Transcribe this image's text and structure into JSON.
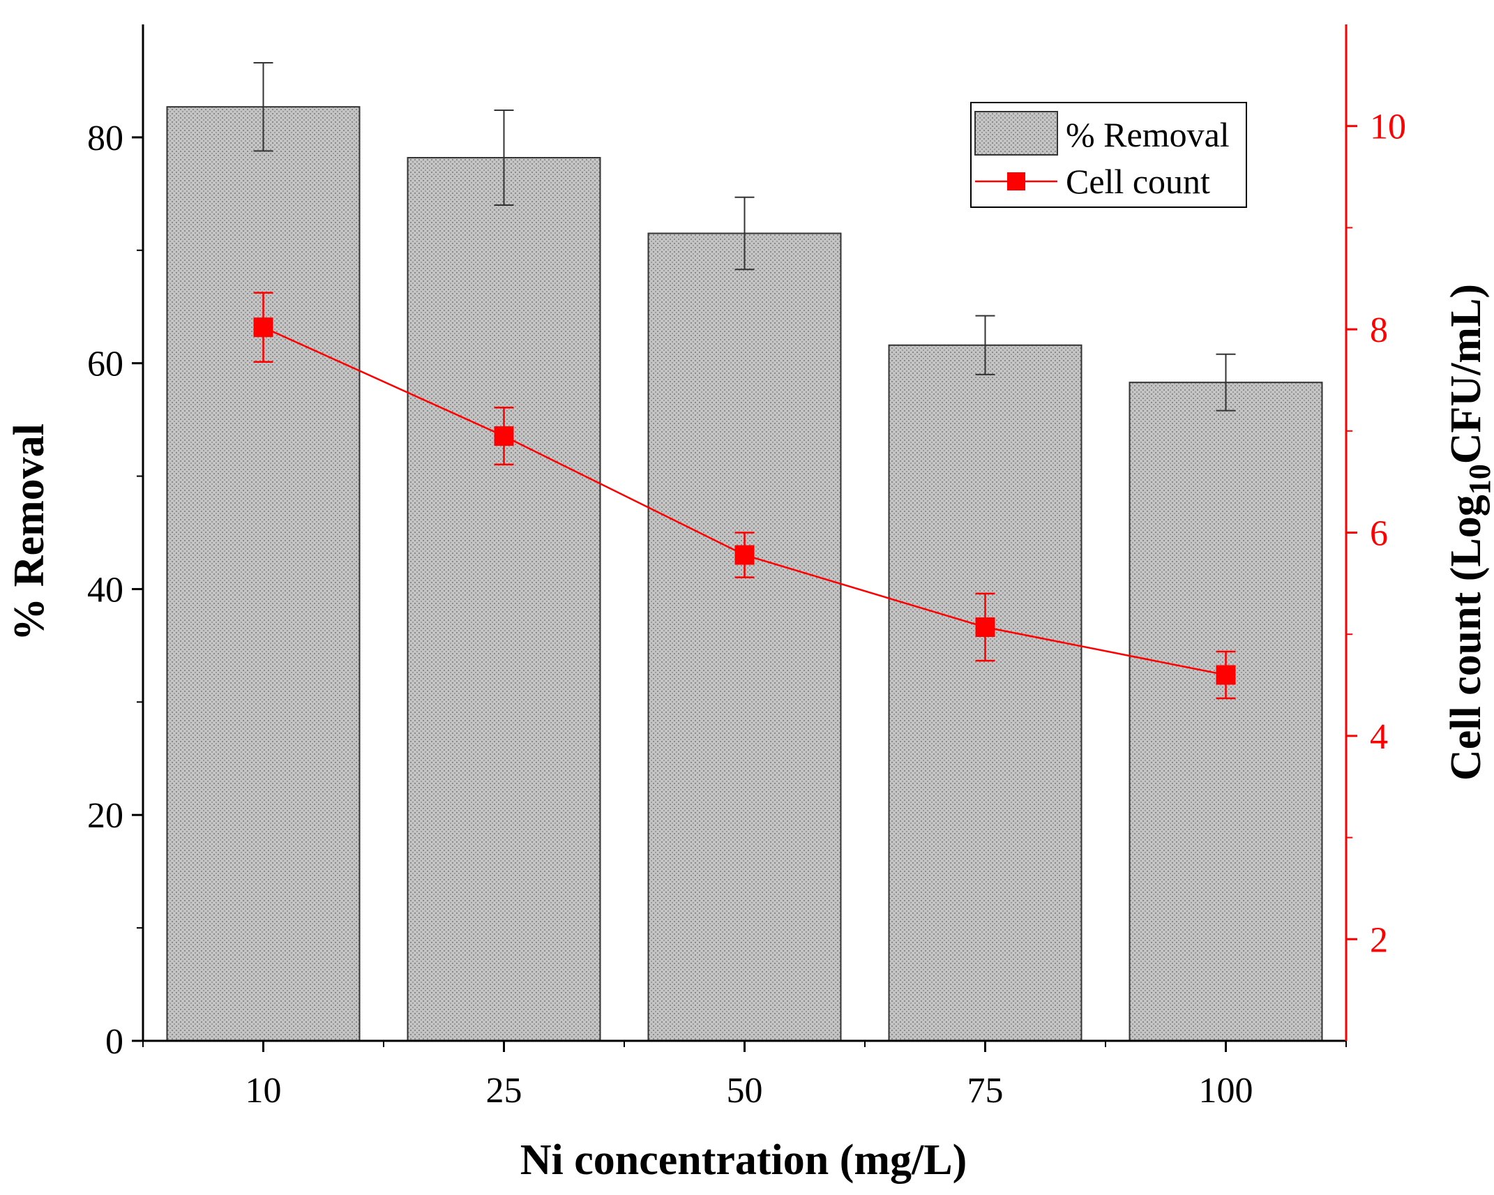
{
  "chart_data": {
    "type": "bar+line",
    "categories": [
      "10",
      "25",
      "50",
      "75",
      "100"
    ],
    "xlabel": "Ni concentration (mg/L)",
    "series": [
      {
        "name": "% Removal",
        "kind": "bar",
        "axis": "left",
        "values": [
          82.7,
          78.2,
          71.5,
          61.6,
          58.3
        ],
        "errors": [
          3.9,
          4.2,
          3.2,
          2.6,
          2.5
        ],
        "color": "#bdbdbd"
      },
      {
        "name": "Cell count",
        "kind": "line",
        "axis": "right",
        "marker": "square",
        "values": [
          8.02,
          6.95,
          5.78,
          5.07,
          4.6
        ],
        "errors": [
          0.34,
          0.28,
          0.22,
          0.33,
          0.23
        ],
        "color": "#ff0000"
      }
    ],
    "y_left": {
      "label": "% Removal",
      "ylim": [
        0,
        90
      ],
      "ticks": [
        "0",
        "20",
        "40",
        "60",
        "80"
      ],
      "tick_values": [
        0,
        20,
        40,
        60,
        80
      ],
      "minor_ticks": [
        10,
        30,
        50,
        70
      ]
    },
    "y_right": {
      "label_main": "Cell count (Log",
      "label_sub": "10",
      "label_tail": "CFU/mL)",
      "ylim": [
        1,
        11
      ],
      "ticks": [
        "2",
        "4",
        "6",
        "8",
        "10"
      ],
      "tick_values": [
        2,
        4,
        6,
        8,
        10
      ],
      "minor_ticks": [
        3,
        5,
        7,
        9
      ],
      "color": "#ff0000"
    },
    "legend": {
      "placement": "top-right",
      "entries": [
        "% Removal",
        "Cell count"
      ]
    }
  }
}
